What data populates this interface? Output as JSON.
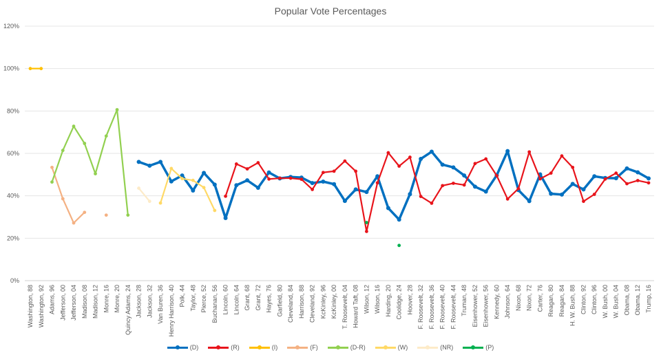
{
  "chart_data": {
    "type": "line",
    "title": "Popular Vote Percentages",
    "ylim": [
      0,
      120
    ],
    "yticks": [
      "0%",
      "20%",
      "40%",
      "60%",
      "80%",
      "100%",
      "120%"
    ],
    "grid": true,
    "legend_position": "bottom",
    "categories": [
      "Washington, 88",
      "Washington, 92",
      "Adams, 96",
      "Jefferson, 00",
      "Jefferson, 04",
      "Madison, 08",
      "Madison, 12",
      "Monre, 16",
      "Monre, 20",
      "Quincy Adams, 24",
      "Jackson, 28",
      "Jackson, 32",
      "Van Buren, 36",
      "Henry Harrison, 40",
      "Polk, 44",
      "Taylor, 48",
      "Pierce, 52",
      "Buchanan, 56",
      "Lincoln, 60",
      "Lincoln, 64",
      "Grant, 68",
      "Grant, 72",
      "Hayes, 76",
      "Garfield, 80",
      "Cleveland, 84",
      "Harrison, 88",
      "Cleveland, 92",
      "KcKinley, 96",
      "KcKinley, 00",
      "T. Roosevelt, 04",
      "Howard Taft, 08",
      "Wilson, 12",
      "Wilson, 16",
      "Harding, 20",
      "Coolidge, 24",
      "Hoover, 28",
      "F. Roosevelt, 32",
      "F. Roosevelt, 36",
      "F. Roosevelt, 40",
      "F. Roosevelt, 44",
      "Truman, 48",
      "Eisenhower, 52",
      "Eisenhower, 56",
      "Kennedy, 60",
      "Johnson, 64",
      "Nixon, 68",
      "Nixon, 72",
      "Carter, 76",
      "Reagan, 80",
      "Reagan, 84",
      "H. W. Bush, 88",
      "Clinton, 92",
      "Clinton, 96",
      "W. Bush, 00",
      "W. Bush, 04",
      "Obama, 08",
      "Obama, 12",
      "Trump, 16"
    ],
    "series": [
      {
        "name": "(D)",
        "color": "#0070C0",
        "values": [
          null,
          null,
          null,
          null,
          null,
          null,
          null,
          null,
          null,
          null,
          56.0,
          54.2,
          56.0,
          46.8,
          49.6,
          42.5,
          50.8,
          45.3,
          29.5,
          45.0,
          47.3,
          43.8,
          51.0,
          48.2,
          48.9,
          48.6,
          46.0,
          46.7,
          45.5,
          37.6,
          43.0,
          41.8,
          49.2,
          34.2,
          28.8,
          40.8,
          57.4,
          60.8,
          54.7,
          53.4,
          49.6,
          44.3,
          42.0,
          49.7,
          61.1,
          42.7,
          37.5,
          50.1,
          41.0,
          40.6,
          45.6,
          43.0,
          49.2,
          48.4,
          48.3,
          52.9,
          51.1,
          48.2
        ]
      },
      {
        "name": "(R)",
        "color": "#E8141B",
        "values": [
          null,
          null,
          null,
          null,
          null,
          null,
          null,
          null,
          null,
          null,
          null,
          null,
          null,
          null,
          null,
          null,
          null,
          null,
          39.8,
          55.0,
          52.7,
          55.6,
          47.9,
          48.3,
          48.3,
          47.8,
          43.0,
          51.0,
          51.6,
          56.4,
          51.6,
          23.2,
          46.1,
          60.3,
          54.0,
          58.2,
          39.7,
          36.5,
          44.8,
          45.9,
          45.1,
          55.2,
          57.4,
          49.5,
          38.5,
          43.4,
          60.7,
          48.0,
          50.7,
          58.8,
          53.4,
          37.4,
          40.7,
          47.9,
          50.7,
          45.7,
          47.2,
          46.1
        ]
      },
      {
        "name": "(I)",
        "color": "#FFC000",
        "values": [
          100,
          100,
          null,
          null,
          null,
          null,
          null,
          null,
          null,
          null,
          null,
          null,
          null,
          null,
          null,
          null,
          null,
          null,
          null,
          null,
          null,
          null,
          null,
          null,
          null,
          null,
          null,
          null,
          null,
          null,
          null,
          null,
          null,
          null,
          null,
          null,
          null,
          null,
          null,
          null,
          null,
          null,
          null,
          null,
          null,
          null,
          null,
          null,
          null,
          null,
          null,
          null,
          null,
          null,
          null,
          null,
          null,
          null
        ]
      },
      {
        "name": "(F)",
        "color": "#F4B183",
        "values": [
          null,
          null,
          53.4,
          38.6,
          27.2,
          32.2,
          null,
          30.9,
          null,
          null,
          null,
          null,
          null,
          null,
          null,
          null,
          null,
          null,
          null,
          null,
          null,
          null,
          null,
          null,
          null,
          null,
          null,
          null,
          null,
          null,
          null,
          null,
          null,
          null,
          null,
          null,
          null,
          null,
          null,
          null,
          null,
          null,
          null,
          null,
          null,
          null,
          null,
          null,
          null,
          null,
          null,
          null,
          null,
          null,
          null,
          null,
          null,
          null
        ]
      },
      {
        "name": "(D-R)",
        "color": "#92D050",
        "values": [
          null,
          null,
          46.5,
          61.4,
          72.8,
          64.7,
          50.4,
          68.2,
          80.6,
          30.9,
          null,
          null,
          null,
          null,
          null,
          null,
          null,
          null,
          null,
          null,
          null,
          null,
          null,
          null,
          null,
          null,
          null,
          null,
          null,
          null,
          null,
          null,
          null,
          null,
          null,
          null,
          null,
          null,
          null,
          null,
          null,
          null,
          null,
          null,
          null,
          null,
          null,
          null,
          null,
          null,
          null,
          null,
          null,
          null,
          null,
          null,
          null,
          null
        ]
      },
      {
        "name": "(W)",
        "color": "#FFD966",
        "values": [
          null,
          null,
          null,
          null,
          null,
          null,
          null,
          null,
          null,
          null,
          null,
          null,
          36.6,
          52.9,
          48.1,
          47.3,
          43.9,
          33.1,
          null,
          null,
          null,
          null,
          null,
          null,
          null,
          null,
          null,
          null,
          null,
          null,
          null,
          null,
          null,
          null,
          null,
          null,
          null,
          null,
          null,
          null,
          null,
          null,
          null,
          null,
          null,
          null,
          null,
          null,
          null,
          null,
          null,
          null,
          null,
          null,
          null,
          null,
          null,
          null
        ]
      },
      {
        "name": "(NR)",
        "color": "#FDEBC8",
        "values": [
          null,
          null,
          null,
          null,
          null,
          null,
          null,
          null,
          null,
          null,
          43.6,
          37.4,
          null,
          null,
          null,
          null,
          null,
          null,
          null,
          null,
          null,
          null,
          null,
          null,
          null,
          null,
          null,
          null,
          null,
          null,
          null,
          null,
          null,
          null,
          null,
          null,
          null,
          null,
          null,
          null,
          null,
          null,
          null,
          null,
          null,
          null,
          null,
          null,
          null,
          null,
          null,
          null,
          null,
          null,
          null,
          null,
          null,
          null
        ]
      },
      {
        "name": "(P)",
        "color": "#00B050",
        "values": [
          null,
          null,
          null,
          null,
          null,
          null,
          null,
          null,
          null,
          null,
          null,
          null,
          null,
          null,
          null,
          null,
          null,
          null,
          null,
          null,
          null,
          null,
          null,
          null,
          null,
          null,
          null,
          null,
          null,
          null,
          null,
          27.4,
          null,
          null,
          16.6,
          null,
          null,
          null,
          null,
          null,
          null,
          null,
          null,
          null,
          null,
          null,
          null,
          null,
          null,
          null,
          null,
          null,
          null,
          null,
          null,
          null,
          null,
          null
        ]
      }
    ]
  }
}
